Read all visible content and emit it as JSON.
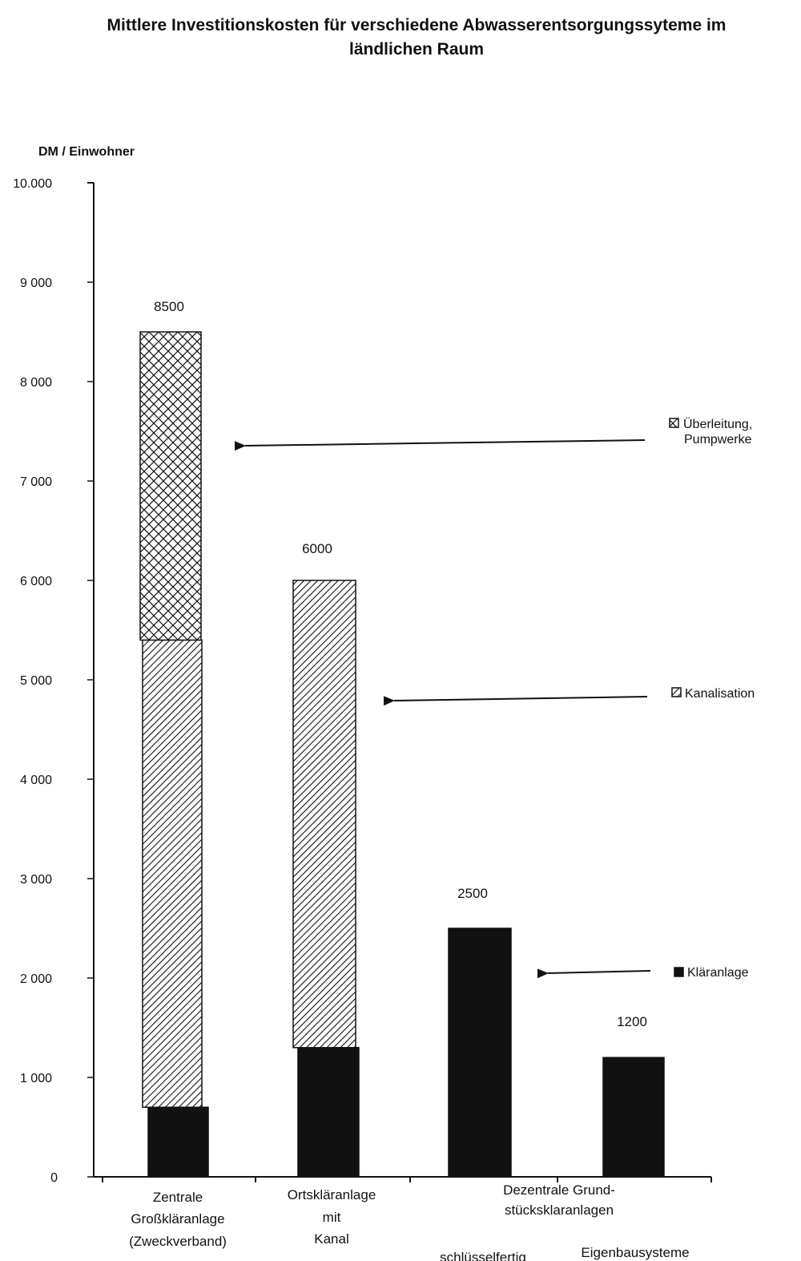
{
  "chart_data": {
    "type": "bar",
    "stacked": true,
    "title_lines": [
      "Mittlere Investitionskosten für verschiedene Abwasserentsorgungssyteme im",
      "ländlichen Raum"
    ],
    "ylabel": "DM / Einwohner",
    "ylim": [
      0,
      10000
    ],
    "yticks": [
      {
        "value": 0,
        "label": "0"
      },
      {
        "value": 1000,
        "label": "1 000"
      },
      {
        "value": 2000,
        "label": "2 000"
      },
      {
        "value": 3000,
        "label": "3 000"
      },
      {
        "value": 4000,
        "label": "4 000"
      },
      {
        "value": 5000,
        "label": "5 000"
      },
      {
        "value": 6000,
        "label": "6 000"
      },
      {
        "value": 7000,
        "label": "7 000"
      },
      {
        "value": 8000,
        "label": "8 000"
      },
      {
        "value": 9000,
        "label": "9 000"
      },
      {
        "value": 10000,
        "label": "10.000"
      }
    ],
    "categories": [
      {
        "lines": [
          "Zentrale",
          "Großkläranlage",
          "(Zweckverband)"
        ]
      },
      {
        "lines": [
          "Ortskläranlage",
          "mit",
          "Kanal"
        ]
      },
      {
        "lines": [
          "schlüsselfertig"
        ]
      },
      {
        "lines": [
          "Eigenbausysteme"
        ]
      }
    ],
    "group_label_lines": [
      "Dezentrale Grund-",
      "stücksklaranlagen"
    ],
    "series": [
      {
        "name": "Kläranlage",
        "pattern": "solid",
        "values": [
          700,
          1300,
          2500,
          1200
        ]
      },
      {
        "name": "Kanalisation",
        "pattern": "diagonal",
        "values": [
          4700,
          4700,
          0,
          0
        ]
      },
      {
        "name": "Überleitung, Pumpwerke",
        "pattern": "crosshatch",
        "values": [
          3100,
          0,
          0,
          0
        ]
      }
    ],
    "totals": [
      "8500",
      "6000",
      "2500",
      "1200"
    ],
    "legend": [
      {
        "series": 2,
        "lines": [
          "Überleitung,",
          "Pumpwerke"
        ]
      },
      {
        "series": 1,
        "lines": [
          "Kanalisation"
        ]
      },
      {
        "series": 0,
        "lines": [
          "Kläranlage"
        ]
      }
    ],
    "grid": false,
    "colors": {
      "ink": "#111111",
      "background": "#ffffff"
    }
  }
}
